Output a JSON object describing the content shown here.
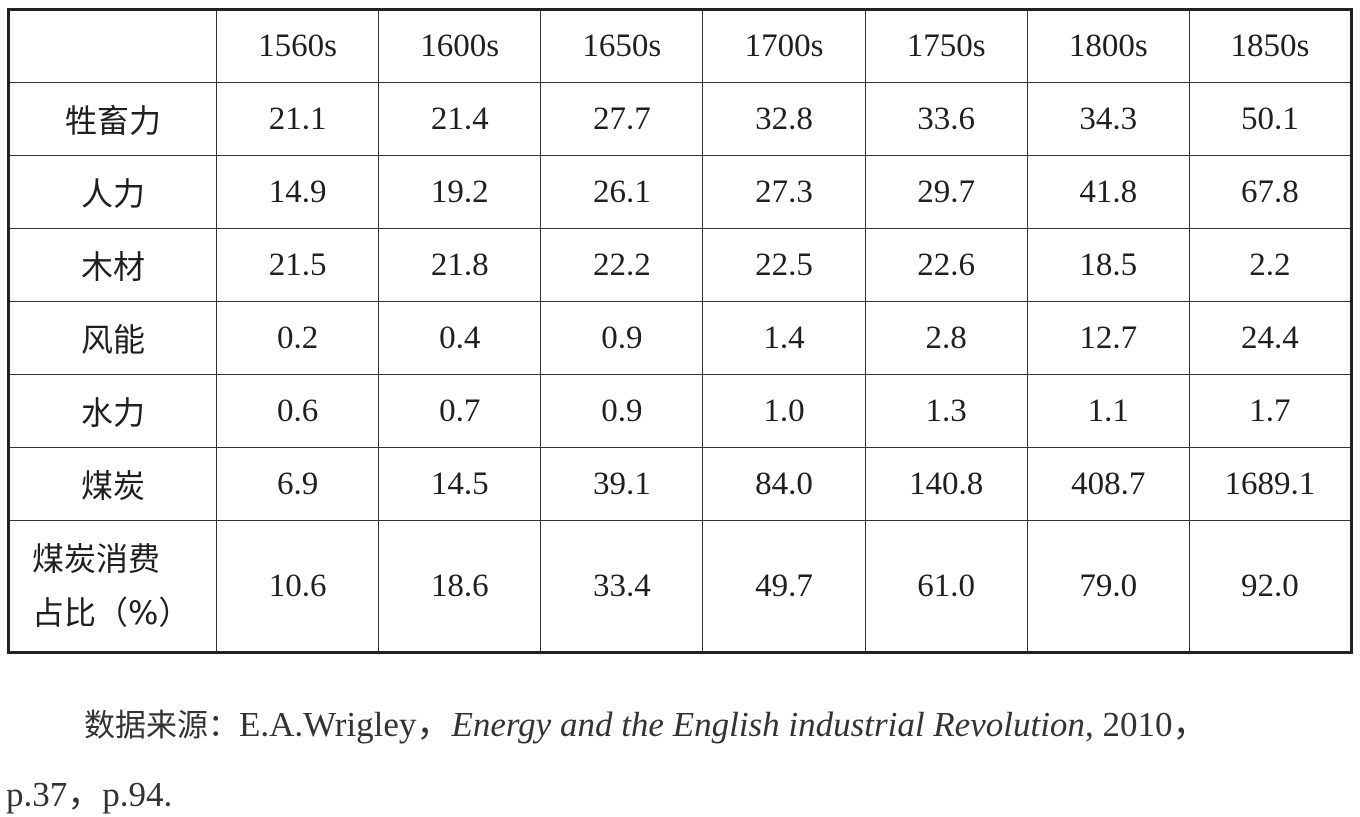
{
  "table": {
    "columns": [
      "",
      "1560s",
      "1600s",
      "1650s",
      "1700s",
      "1750s",
      "1800s",
      "1850s"
    ],
    "rows": [
      {
        "label": "牲畜力",
        "values": [
          "21.1",
          "21.4",
          "27.7",
          "32.8",
          "33.6",
          "34.3",
          "50.1"
        ]
      },
      {
        "label": "人力",
        "values": [
          "14.9",
          "19.2",
          "26.1",
          "27.3",
          "29.7",
          "41.8",
          "67.8"
        ]
      },
      {
        "label": "木材",
        "values": [
          "21.5",
          "21.8",
          "22.2",
          "22.5",
          "22.6",
          "18.5",
          "2.2"
        ]
      },
      {
        "label": "风能",
        "values": [
          "0.2",
          "0.4",
          "0.9",
          "1.4",
          "2.8",
          "12.7",
          "24.4"
        ]
      },
      {
        "label": "水力",
        "values": [
          "0.6",
          "0.7",
          "0.9",
          "1.0",
          "1.3",
          "1.1",
          "1.7"
        ]
      },
      {
        "label": "煤炭",
        "values": [
          "6.9",
          "14.5",
          "39.1",
          "84.0",
          "140.8",
          "408.7",
          "1689.1"
        ]
      }
    ],
    "share_row": {
      "label_line1": "煤炭消费",
      "label_line2": "占比（%）",
      "values": [
        "10.6",
        "18.6",
        "33.4",
        "49.7",
        "61.0",
        "79.0",
        "92.0"
      ]
    }
  },
  "footnote": {
    "prefix": "数据来源：",
    "author": "E.A.Wrigley，",
    "title": "Energy and the English industrial Revolution",
    "year": ", 2010，",
    "pages": "p.37，p.94."
  }
}
